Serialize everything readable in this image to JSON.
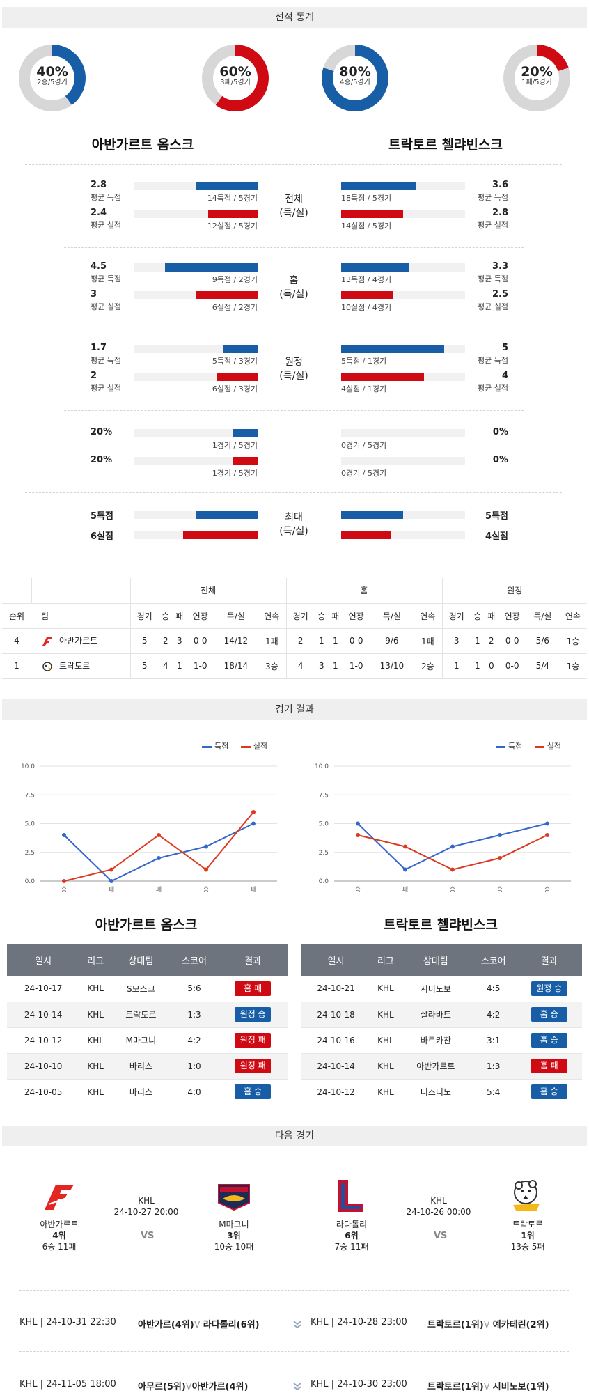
{
  "sections": {
    "stats_title": "전적 통계",
    "results_title": "경기 결과",
    "next_title": "다음 경기"
  },
  "donuts": [
    {
      "pct": "40%",
      "sub": "2승/5경기",
      "fraction": 0.4,
      "color": "#175ea6"
    },
    {
      "pct": "60%",
      "sub": "3패/5경기",
      "fraction": 0.6,
      "color": "#cf0a12"
    },
    {
      "pct": "80%",
      "sub": "4승/5경기",
      "fraction": 0.8,
      "color": "#175ea6"
    },
    {
      "pct": "20%",
      "sub": "1패/5경기",
      "fraction": 0.2,
      "color": "#cf0a12"
    }
  ],
  "teams": {
    "home": "아반가르트 옴스크",
    "away": "트락토르 첼랴빈스크"
  },
  "stat_groups": [
    {
      "category": "전체\n(득/실)",
      "rows": [
        {
          "l_val": "2.8",
          "l_lab": "평균 득점",
          "l_cap": "14득점 / 5경기",
          "l_frac": 0.5,
          "l_color": "blue",
          "r_val": "3.6",
          "r_lab": "평균 득점",
          "r_cap": "18득점 / 5경기",
          "r_frac": 0.6,
          "r_color": "blue"
        },
        {
          "l_val": "2.4",
          "l_lab": "평균 실점",
          "l_cap": "12실점 / 5경기",
          "l_frac": 0.4,
          "l_color": "red",
          "r_val": "2.8",
          "r_lab": "평균 실점",
          "r_cap": "14실점 / 5경기",
          "r_frac": 0.5,
          "r_color": "red"
        }
      ]
    },
    {
      "category": "홈\n(득/실)",
      "rows": [
        {
          "l_val": "4.5",
          "l_lab": "평균 득점",
          "l_cap": "9득점 / 2경기",
          "l_frac": 0.75,
          "l_color": "blue",
          "r_val": "3.3",
          "r_lab": "평균 득점",
          "r_cap": "13득점 / 4경기",
          "r_frac": 0.55,
          "r_color": "blue"
        },
        {
          "l_val": "3",
          "l_lab": "평균 실점",
          "l_cap": "6실점 / 2경기",
          "l_frac": 0.5,
          "l_color": "red",
          "r_val": "2.5",
          "r_lab": "평균 실점",
          "r_cap": "10실점 / 4경기",
          "r_frac": 0.42,
          "r_color": "red"
        }
      ]
    },
    {
      "category": "원정\n(득/실)",
      "rows": [
        {
          "l_val": "1.7",
          "l_lab": "평균 득점",
          "l_cap": "5득점 / 3경기",
          "l_frac": 0.28,
          "l_color": "blue",
          "r_val": "5",
          "r_lab": "평균 득점",
          "r_cap": "5득점 / 1경기",
          "r_frac": 0.83,
          "r_color": "blue"
        },
        {
          "l_val": "2",
          "l_lab": "평균 실점",
          "l_cap": "6실점 / 3경기",
          "l_frac": 0.33,
          "l_color": "red",
          "r_val": "4",
          "r_lab": "평균 실점",
          "r_cap": "4실점 / 1경기",
          "r_frac": 0.67,
          "r_color": "red"
        }
      ]
    }
  ],
  "stat_singles": [
    {
      "category": "무실점",
      "l_val": "20%",
      "l_cap": "1경기 / 5경기",
      "l_frac": 0.2,
      "l_color": "blue",
      "r_val": "0%",
      "r_cap": "0경기 / 5경기",
      "r_frac": 0,
      "r_color": "blue"
    },
    {
      "category": "무득점",
      "l_val": "20%",
      "l_cap": "1경기 / 5경기",
      "l_frac": 0.2,
      "l_color": "red",
      "r_val": "0%",
      "r_cap": "0경기 / 5경기",
      "r_frac": 0,
      "r_color": "red"
    }
  ],
  "stat_max": {
    "category": "최대\n(득/실)",
    "rows": [
      {
        "l_val": "5득점",
        "l_frac": 0.5,
        "l_color": "blue",
        "r_val": "5득점",
        "r_frac": 0.5,
        "r_color": "blue"
      },
      {
        "l_val": "6실점",
        "l_frac": 0.6,
        "l_color": "red",
        "r_val": "4실점",
        "r_frac": 0.4,
        "r_color": "red"
      }
    ]
  },
  "standings": {
    "group_headers": [
      "전체",
      "홈",
      "원정"
    ],
    "col_rank": "순위",
    "col_team": "팀",
    "cols": [
      "경기",
      "승",
      "패",
      "연장",
      "득/실",
      "연속"
    ],
    "rows": [
      {
        "rank": "4",
        "team": "아반가르트",
        "logo_color": "#e52521",
        "all": [
          "5",
          "2",
          "3",
          "0-0",
          "14/12",
          "1패"
        ],
        "home": [
          "2",
          "1",
          "1",
          "0-0",
          "9/6",
          "1패"
        ],
        "away": [
          "3",
          "1",
          "2",
          "0-0",
          "5/6",
          "1승"
        ]
      },
      {
        "rank": "1",
        "team": "트락토르",
        "logo_color": "#333333",
        "all": [
          "5",
          "4",
          "1",
          "1-0",
          "18/14",
          "3승"
        ],
        "home": [
          "4",
          "3",
          "1",
          "1-0",
          "13/10",
          "2승"
        ],
        "away": [
          "1",
          "1",
          "0",
          "0-0",
          "5/4",
          "1승"
        ]
      }
    ]
  },
  "chart_data": [
    {
      "type": "line",
      "title": "",
      "categories": [
        "승",
        "패",
        "패",
        "승",
        "패"
      ],
      "series": [
        {
          "name": "득점",
          "color": "#3567c8",
          "values": [
            4,
            0,
            2,
            3,
            5
          ]
        },
        {
          "name": "실점",
          "color": "#dc3a1f",
          "values": [
            0,
            1,
            4,
            1,
            6
          ]
        }
      ],
      "ylim": [
        0,
        10
      ],
      "yticks": [
        "0.0",
        "2.5",
        "5.0",
        "7.5",
        "10.0"
      ],
      "grid": true,
      "legend": "top-right"
    },
    {
      "type": "line",
      "title": "",
      "categories": [
        "승",
        "패",
        "승",
        "승",
        "승"
      ],
      "series": [
        {
          "name": "득점",
          "color": "#3567c8",
          "values": [
            5,
            1,
            3,
            4,
            5
          ]
        },
        {
          "name": "실점",
          "color": "#dc3a1f",
          "values": [
            4,
            3,
            1,
            2,
            4
          ]
        }
      ],
      "ylim": [
        0,
        10
      ],
      "yticks": [
        "0.0",
        "2.5",
        "5.0",
        "7.5",
        "10.0"
      ],
      "grid": true,
      "legend": "top-right"
    }
  ],
  "results_headers": [
    "일시",
    "리그",
    "상대팀",
    "스코어",
    "결과"
  ],
  "results_left": [
    {
      "date": "24-10-17",
      "league": "KHL",
      "opp": "S모스크",
      "score": "5:6",
      "result": "홈 패",
      "color": "red"
    },
    {
      "date": "24-10-14",
      "league": "KHL",
      "opp": "트락토르",
      "score": "1:3",
      "result": "원정 승",
      "color": "blue"
    },
    {
      "date": "24-10-12",
      "league": "KHL",
      "opp": "M마그니",
      "score": "4:2",
      "result": "원정 패",
      "color": "red"
    },
    {
      "date": "24-10-10",
      "league": "KHL",
      "opp": "바리스",
      "score": "1:0",
      "result": "원정 패",
      "color": "red"
    },
    {
      "date": "24-10-05",
      "league": "KHL",
      "opp": "바리스",
      "score": "4:0",
      "result": "홈 승",
      "color": "blue"
    }
  ],
  "results_right": [
    {
      "date": "24-10-21",
      "league": "KHL",
      "opp": "시비노보",
      "score": "4:5",
      "result": "원정 승",
      "color": "blue"
    },
    {
      "date": "24-10-18",
      "league": "KHL",
      "opp": "살라바트",
      "score": "4:2",
      "result": "홈 승",
      "color": "blue"
    },
    {
      "date": "24-10-16",
      "league": "KHL",
      "opp": "바르카찬",
      "score": "3:1",
      "result": "홈 승",
      "color": "blue"
    },
    {
      "date": "24-10-14",
      "league": "KHL",
      "opp": "아반가르트",
      "score": "1:3",
      "result": "홈 패",
      "color": "red"
    },
    {
      "date": "24-10-12",
      "league": "KHL",
      "opp": "니즈니노",
      "score": "5:4",
      "result": "홈 승",
      "color": "blue"
    }
  ],
  "next_matches": [
    {
      "league": "KHL",
      "datetime": "24-10-27 20:00",
      "vs": "VS",
      "t1": {
        "name": "아반가르트",
        "rank": "4위",
        "record": "6승 11패"
      },
      "t2": {
        "name": "M마그니",
        "rank": "3위",
        "record": "10승 10패"
      }
    },
    {
      "league": "KHL",
      "datetime": "24-10-26 00:00",
      "vs": "VS",
      "t1": {
        "name": "라다톨리",
        "rank": "6위",
        "record": "7승 11패"
      },
      "t2": {
        "name": "트락토르",
        "rank": "1위",
        "record": "13승 5패"
      }
    }
  ],
  "future": [
    {
      "l_info": "KHL | 24-10-31 22:30",
      "l_teams": "아반가르(4위)",
      "l_vs": "V",
      "l_opp": "라다톨리(6위)",
      "r_info": "KHL | 24-10-28 23:00",
      "r_teams": "트락토르(1위)",
      "r_vs": "V",
      "r_opp": "예카테린(2위)"
    },
    {
      "l_info": "KHL | 24-11-05 18:00",
      "l_teams": "아무르(5위)",
      "l_vs": "V",
      "l_opp": "아반가르(4위)",
      "r_info": "KHL | 24-10-30 23:00",
      "r_teams": "트락토르(1위)",
      "r_vs": "V",
      "r_opp": "시비노보(1위)"
    }
  ]
}
